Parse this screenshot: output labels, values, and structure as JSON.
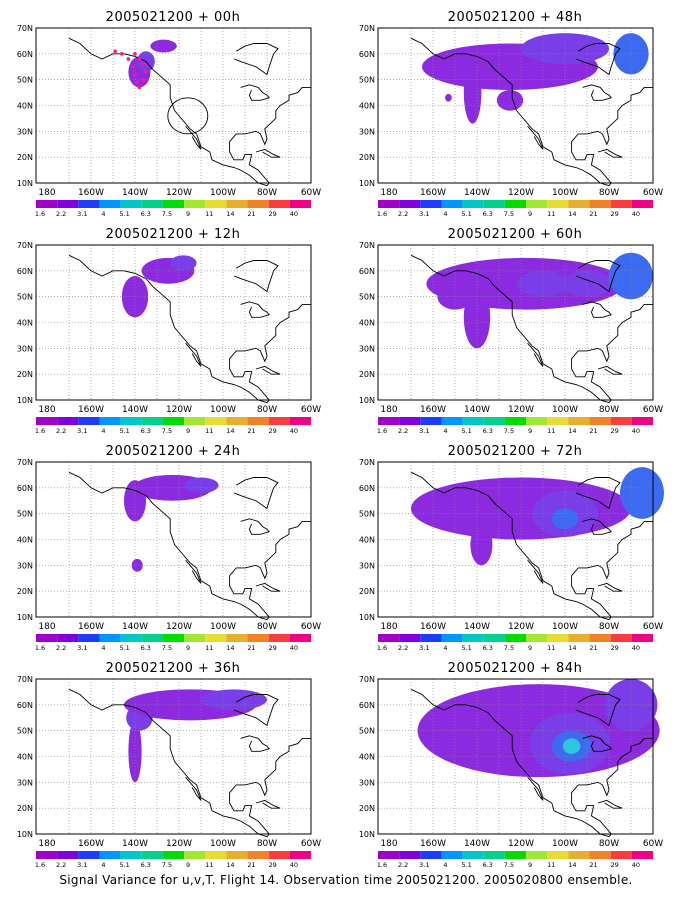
{
  "panels": [
    {
      "title": "2005021200 + 00h",
      "blobs": [
        [
          -138,
          53,
          5,
          6,
          1
        ],
        [
          -135,
          57,
          4,
          4,
          2
        ],
        [
          -127,
          63,
          6,
          2.5,
          1
        ]
      ],
      "track": true
    },
    {
      "title": "2005021200 + 12h",
      "blobs": [
        [
          -140,
          50,
          6,
          8,
          1
        ],
        [
          -125,
          60,
          12,
          5,
          1
        ],
        [
          -118,
          63,
          6,
          3,
          2
        ]
      ],
      "track": false
    },
    {
      "title": "2005021200 + 24h",
      "blobs": [
        [
          -140,
          55,
          5,
          8,
          1
        ],
        [
          -123,
          60,
          18,
          5,
          1
        ],
        [
          -110,
          61,
          8,
          3,
          2
        ],
        [
          -139,
          30,
          2.5,
          2.5,
          1
        ]
      ],
      "track": false
    },
    {
      "title": "2005021200 + 36h",
      "blobs": [
        [
          -140,
          42,
          3,
          12,
          1
        ],
        [
          -138,
          55,
          6,
          5,
          2
        ],
        [
          -115,
          60,
          30,
          6,
          1
        ],
        [
          -95,
          62,
          15,
          4,
          2
        ]
      ],
      "track": false
    },
    {
      "title": "2005021200 + 48h",
      "blobs": [
        [
          -142,
          45,
          4,
          12,
          1
        ],
        [
          -125,
          55,
          40,
          9,
          1
        ],
        [
          -100,
          62,
          20,
          6,
          2
        ],
        [
          -70,
          60,
          8,
          8,
          3
        ],
        [
          -153,
          43,
          1.5,
          1.5,
          1
        ],
        [
          -125,
          42,
          6,
          4,
          1
        ]
      ],
      "track": false
    },
    {
      "title": "2005021200 + 60h",
      "blobs": [
        [
          -140,
          42,
          6,
          12,
          1
        ],
        [
          -118,
          55,
          45,
          10,
          1
        ],
        [
          -110,
          55,
          12,
          5,
          2
        ],
        [
          -90,
          55,
          12,
          5,
          2
        ],
        [
          -70,
          58,
          10,
          9,
          3
        ],
        [
          -150,
          50,
          8,
          5,
          1
        ]
      ],
      "track": false
    },
    {
      "title": "2005021200 + 72h",
      "blobs": [
        [
          -138,
          38,
          5,
          8,
          1
        ],
        [
          -120,
          52,
          50,
          12,
          1
        ],
        [
          -100,
          50,
          15,
          9,
          2
        ],
        [
          -100,
          48,
          6,
          4,
          3
        ],
        [
          -65,
          58,
          10,
          10,
          3
        ],
        [
          -155,
          50,
          8,
          6,
          1
        ]
      ],
      "track": false
    },
    {
      "title": "2005021200 + 84h",
      "blobs": [
        [
          -138,
          43,
          8,
          8,
          1
        ],
        [
          -112,
          50,
          55,
          18,
          1
        ],
        [
          -98,
          45,
          18,
          12,
          2
        ],
        [
          -97,
          44,
          9,
          6,
          3
        ],
        [
          -97,
          44,
          4,
          3,
          4
        ],
        [
          -70,
          60,
          12,
          10,
          2
        ],
        [
          -150,
          55,
          10,
          6,
          1
        ]
      ],
      "track": false
    }
  ],
  "axes": {
    "y_labels": [
      "10N",
      "20N",
      "30N",
      "40N",
      "50N",
      "60N",
      "70N"
    ],
    "x_labels": [
      "180",
      "160W",
      "140W",
      "120W",
      "100W",
      "80W",
      "60W"
    ]
  },
  "colorbar": {
    "labels": [
      "1.6",
      "2.2",
      "3.1",
      "4",
      "5.1",
      "6.3",
      "7.5",
      "9",
      "11",
      "14",
      "21",
      "29",
      "40"
    ],
    "colors": [
      "#a000c8",
      "#8200dc",
      "#1e3cff",
      "#0096ff",
      "#00c8c8",
      "#00d28c",
      "#00dc00",
      "#a0e632",
      "#e6dc32",
      "#e6af2d",
      "#f08228",
      "#fa3c3c",
      "#f00082"
    ]
  },
  "shading_colors": [
    "#8c2ae0",
    "#7a3ee8",
    "#3c6af0",
    "#2ac8d8",
    "#00d28c"
  ],
  "track_color": "#ff1493",
  "caption": "Signal Variance for u,v,T. Flight 14. Observation time 2005021200. 2005020800 ensemble."
}
